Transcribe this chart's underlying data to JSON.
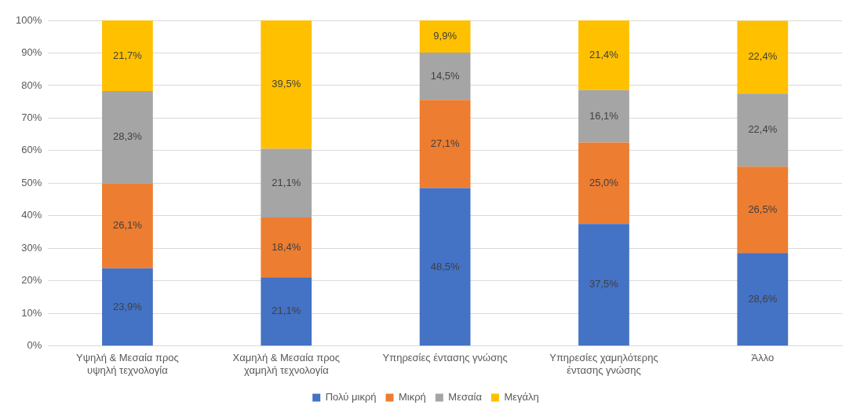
{
  "chart_data": {
    "type": "bar",
    "stacked": true,
    "categories": [
      "Υψηλή & Μεσαία προς υψηλή τεχνολογία",
      "Χαμηλή & Μεσαία προς χαμηλή τεχνολογία",
      "Υπηρεσίες έντασης γνώσης",
      "Υπηρεσίες χαμηλότερης έντασης γνώσης",
      "Άλλο"
    ],
    "series": [
      {
        "name": "Πολύ μικρή",
        "color": "#4472c4",
        "values": [
          23.9,
          21.1,
          48.5,
          37.5,
          28.6
        ],
        "value_labels": [
          "23,9%",
          "21,1%",
          "48,5%",
          "37,5%",
          "28,6%"
        ]
      },
      {
        "name": "Μικρή",
        "color": "#ed7d31",
        "values": [
          26.1,
          18.4,
          27.1,
          25.0,
          26.5
        ],
        "value_labels": [
          "26,1%",
          "18,4%",
          "27,1%",
          "25,0%",
          "26,5%"
        ]
      },
      {
        "name": "Μεσαία",
        "color": "#a5a5a5",
        "values": [
          28.3,
          21.1,
          14.5,
          16.1,
          22.4
        ],
        "value_labels": [
          "28,3%",
          "21,1%",
          "14,5%",
          "16,1%",
          "22,4%"
        ]
      },
      {
        "name": "Μεγάλη",
        "color": "#ffc000",
        "values": [
          21.7,
          39.5,
          9.9,
          21.4,
          22.4
        ],
        "value_labels": [
          "21,7%",
          "39,5%",
          "9,9%",
          "21,4%",
          "22,4%"
        ]
      }
    ],
    "ylim": [
      0,
      100
    ],
    "yticks": [
      {
        "value": 0,
        "label": "0%"
      },
      {
        "value": 10,
        "label": "10%"
      },
      {
        "value": 20,
        "label": "20%"
      },
      {
        "value": 30,
        "label": "30%"
      },
      {
        "value": 40,
        "label": "40%"
      },
      {
        "value": 50,
        "label": "50%"
      },
      {
        "value": 60,
        "label": "60%"
      },
      {
        "value": 70,
        "label": "70%"
      },
      {
        "value": 80,
        "label": "80%"
      },
      {
        "value": 90,
        "label": "90%"
      },
      {
        "value": 100,
        "label": "100%"
      }
    ],
    "grid": "y",
    "legend": "bottom"
  }
}
